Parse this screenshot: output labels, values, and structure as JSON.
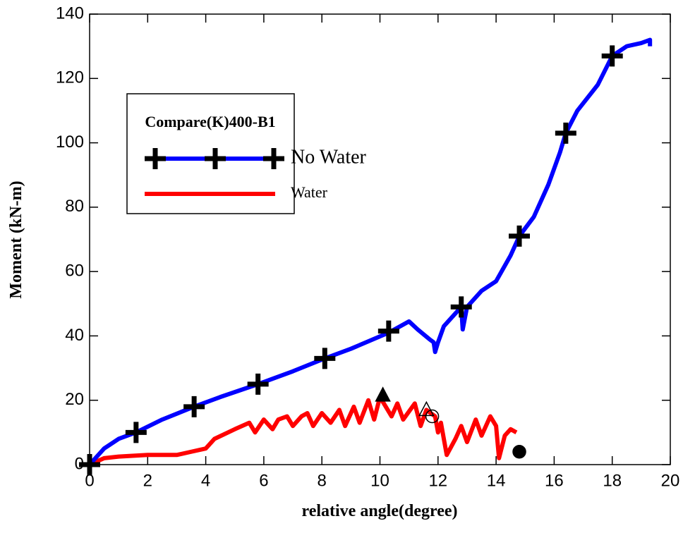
{
  "chart_data": {
    "type": "line",
    "xlabel": "relative angle(degree)",
    "ylabel": "Moment (kN-m)",
    "legend_title": "Compare(K)400-B1",
    "legend": "upper left",
    "xlim": [
      0,
      20
    ],
    "xticks": [
      0,
      2,
      4,
      6,
      8,
      10,
      12,
      14,
      16,
      18,
      20
    ],
    "ylim": [
      0,
      140
    ],
    "yticks": [
      0,
      20,
      40,
      60,
      80,
      100,
      120,
      140
    ],
    "series": [
      {
        "name": "No Water",
        "color": "#0000ff",
        "marker": "plus",
        "x": [
          0,
          0.5,
          1,
          1.6,
          2.5,
          3.6,
          4.5,
          5.8,
          7,
          8.1,
          9,
          10.3,
          11,
          11.3,
          11.7,
          11.85,
          11.9,
          12,
          12.2,
          12.8,
          12.85,
          13,
          13.5,
          14,
          14.5,
          14.8,
          15.3,
          15.8,
          16.2,
          16.4,
          16.8,
          17.5,
          18,
          18.5,
          19,
          19.3,
          19.3
        ],
        "values": [
          0,
          5,
          8,
          10,
          14,
          18,
          21,
          25,
          29,
          33,
          36,
          41,
          44.5,
          42,
          39,
          38,
          35,
          38,
          43,
          49,
          42,
          49,
          54,
          57,
          65,
          71,
          77,
          87,
          97,
          103,
          110,
          118,
          127,
          130,
          131,
          132,
          130
        ],
        "markers": {
          "x": [
            0,
            1.6,
            3.6,
            5.8,
            8.1,
            10.3,
            12.8,
            14.8,
            16.4,
            18
          ],
          "y": [
            0,
            10,
            18,
            25,
            33,
            41.5,
            49,
            71,
            103,
            127
          ]
        }
      },
      {
        "name": "Water",
        "color": "#ff0000",
        "x": [
          0,
          0.5,
          1,
          2,
          3,
          3.5,
          4,
          4.3,
          5,
          5.5,
          5.7,
          6,
          6.3,
          6.5,
          6.8,
          7,
          7.3,
          7.5,
          7.7,
          8,
          8.3,
          8.6,
          8.8,
          9.1,
          9.3,
          9.6,
          9.8,
          10,
          10.2,
          10.4,
          10.6,
          10.8,
          11.2,
          11.4,
          11.6,
          11.9,
          12,
          12.1,
          12.3,
          12.6,
          12.8,
          13,
          13.3,
          13.5,
          13.8,
          14,
          14.1,
          14.3,
          14.5,
          14.7
        ],
        "values": [
          0,
          2,
          2.5,
          3,
          3,
          4,
          5,
          8,
          11,
          13,
          10,
          14,
          11,
          14,
          15,
          12,
          15,
          16,
          12,
          16,
          13,
          17,
          12,
          18,
          13,
          20,
          14,
          21,
          18,
          15,
          19,
          14,
          19,
          12,
          17,
          15,
          10,
          13,
          3,
          8,
          12,
          7,
          14,
          9,
          15,
          12,
          2,
          9,
          11,
          10
        ]
      }
    ],
    "annotations": [
      {
        "x": 10.1,
        "y": 21.5,
        "marker": "triangle",
        "filled": true
      },
      {
        "x": 11.6,
        "y": 17,
        "marker": "triangle",
        "filled": false
      },
      {
        "x": 11.8,
        "y": 15,
        "marker": "circle",
        "filled": false
      },
      {
        "x": 14.8,
        "y": 4,
        "marker": "circle",
        "filled": true
      }
    ]
  }
}
